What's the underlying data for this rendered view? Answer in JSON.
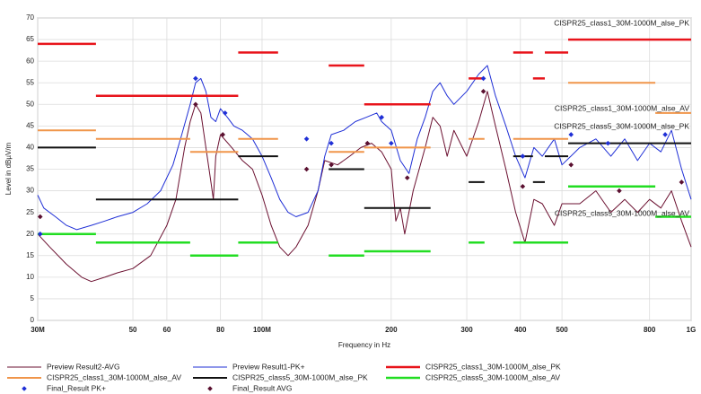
{
  "chart_data": {
    "type": "line",
    "xlabel": "Frequency in Hz",
    "ylabel": "Level in dBµV/m",
    "xscale": "log",
    "xlim": [
      30000000,
      1000000000
    ],
    "ylim": [
      0,
      70
    ],
    "xticks": [
      {
        "value": 30000000,
        "label": "30M"
      },
      {
        "value": 50000000,
        "label": "50"
      },
      {
        "value": 60000000,
        "label": "60"
      },
      {
        "value": 80000000,
        "label": "80"
      },
      {
        "value": 100000000,
        "label": "100M"
      },
      {
        "value": 200000000,
        "label": "200"
      },
      {
        "value": 300000000,
        "label": "300"
      },
      {
        "value": 400000000,
        "label": "400"
      },
      {
        "value": 500000000,
        "label": "500"
      },
      {
        "value": 800000000,
        "label": "800"
      },
      {
        "value": 1000000000,
        "label": "1G"
      }
    ],
    "yticks": [
      0,
      5,
      10,
      15,
      20,
      25,
      30,
      35,
      40,
      45,
      50,
      55,
      60,
      65,
      70
    ],
    "grid": true,
    "series": [
      {
        "name": "Preview Result2-AVG",
        "color": "#6b1030",
        "width": 1,
        "x": [
          30000000,
          32000000,
          35000000,
          38000000,
          40000000,
          43000000,
          46000000,
          50000000,
          55000000,
          60000000,
          63000000,
          66000000,
          68000000,
          70000000,
          72000000,
          74000000,
          76000000,
          77000000,
          78000000,
          80000000,
          85000000,
          90000000,
          95000000,
          100000000,
          105000000,
          110000000,
          115000000,
          120000000,
          128000000,
          135000000,
          140000000,
          150000000,
          160000000,
          170000000,
          180000000,
          190000000,
          200000000,
          205000000,
          210000000,
          215000000,
          225000000,
          240000000,
          250000000,
          260000000,
          270000000,
          280000000,
          300000000,
          320000000,
          335000000,
          350000000,
          370000000,
          390000000,
          410000000,
          430000000,
          450000000,
          480000000,
          500000000,
          550000000,
          600000000,
          650000000,
          700000000,
          750000000,
          800000000,
          850000000,
          900000000,
          950000000,
          1000000000
        ],
        "values": [
          20,
          17,
          13,
          10,
          9,
          10,
          11,
          12,
          15,
          22,
          28,
          40,
          46,
          50,
          48,
          40,
          32,
          28,
          38,
          43,
          40,
          37,
          35,
          29,
          22,
          17,
          15,
          17,
          22,
          30,
          37,
          36,
          38,
          40,
          41,
          39,
          35,
          23,
          26,
          20,
          30,
          40,
          47,
          45,
          38,
          44,
          38,
          46,
          53,
          45,
          35,
          25,
          18,
          28,
          27,
          22,
          27,
          27,
          30,
          25,
          28,
          25,
          28,
          26,
          30,
          23,
          17
        ]
      },
      {
        "name": "Preview Result1-PK+",
        "color": "#1f2fd6",
        "width": 1,
        "x": [
          30000000,
          31000000,
          33000000,
          35000000,
          37000000,
          40000000,
          43000000,
          46000000,
          50000000,
          54000000,
          58000000,
          62000000,
          65000000,
          68000000,
          70000000,
          72000000,
          74000000,
          76000000,
          78000000,
          80000000,
          83000000,
          86000000,
          90000000,
          95000000,
          100000000,
          105000000,
          110000000,
          115000000,
          120000000,
          128000000,
          135000000,
          140000000,
          145000000,
          155000000,
          165000000,
          175000000,
          185000000,
          190000000,
          200000000,
          210000000,
          220000000,
          230000000,
          240000000,
          250000000,
          260000000,
          270000000,
          280000000,
          300000000,
          320000000,
          335000000,
          350000000,
          370000000,
          390000000,
          410000000,
          430000000,
          450000000,
          480000000,
          500000000,
          550000000,
          600000000,
          650000000,
          700000000,
          750000000,
          800000000,
          850000000,
          900000000,
          950000000,
          1000000000
        ],
        "values": [
          29,
          26,
          24,
          22,
          21,
          22,
          23,
          24,
          25,
          27,
          30,
          36,
          43,
          50,
          55,
          56,
          53,
          47,
          46,
          49,
          47,
          45,
          44,
          42,
          38,
          33,
          28,
          25,
          24,
          25,
          30,
          38,
          43,
          44,
          46,
          47,
          48,
          46,
          44,
          37,
          34,
          42,
          47,
          53,
          55,
          52,
          50,
          53,
          57,
          59,
          52,
          45,
          38,
          33,
          40,
          38,
          42,
          36,
          40,
          42,
          38,
          42,
          37,
          41,
          39,
          44,
          35,
          28
        ]
      },
      {
        "name": "CISPR25_class1_30M-1000M_alse_PK",
        "color": "#e8141b",
        "width": 2.5,
        "x": [
          30000000,
          41000000,
          null,
          41000000,
          88000000,
          null,
          88000000,
          109000000,
          null,
          143000000,
          173000000,
          null,
          173000000,
          247000000,
          null,
          303000000,
          330000000,
          null,
          385000000,
          428000000,
          null,
          428000000,
          456000000,
          null,
          456000000,
          517000000,
          null,
          517000000,
          1000000000
        ],
        "values": [
          64,
          64,
          null,
          52,
          52,
          null,
          62,
          62,
          null,
          59,
          59,
          null,
          50,
          50,
          null,
          56,
          56,
          null,
          62,
          62,
          null,
          56,
          56,
          null,
          62,
          62,
          null,
          65,
          65
        ]
      },
      {
        "name": "CISPR25_class1_30M-1000M_alse_AV",
        "color": "#f0954a",
        "width": 2,
        "x": [
          30000000,
          41000000,
          null,
          41000000,
          68000000,
          null,
          68000000,
          88000000,
          null,
          88000000,
          109000000,
          null,
          143000000,
          173000000,
          null,
          173000000,
          247000000,
          null,
          303000000,
          330000000,
          null,
          385000000,
          517000000,
          null,
          517000000,
          825000000,
          null,
          825000000,
          1000000000
        ],
        "values": [
          44,
          44,
          null,
          42,
          42,
          null,
          39,
          39,
          null,
          42,
          42,
          null,
          39,
          39,
          null,
          40,
          40,
          null,
          42,
          42,
          null,
          42,
          42,
          null,
          55,
          55,
          null,
          48,
          48
        ]
      },
      {
        "name": "CISPR25_class5_30M-1000M_alse_PK",
        "color": "#111111",
        "width": 2,
        "x": [
          30000000,
          41000000,
          null,
          41000000,
          88000000,
          null,
          88000000,
          109000000,
          null,
          143000000,
          173000000,
          null,
          173000000,
          247000000,
          null,
          303000000,
          330000000,
          null,
          385000000,
          428000000,
          null,
          428000000,
          456000000,
          null,
          456000000,
          517000000,
          null,
          517000000,
          1000000000
        ],
        "values": [
          40,
          40,
          null,
          28,
          28,
          null,
          38,
          38,
          null,
          35,
          35,
          null,
          26,
          26,
          null,
          32,
          32,
          null,
          38,
          38,
          null,
          32,
          32,
          null,
          38,
          38,
          null,
          41,
          41
        ]
      },
      {
        "name": "CISPR25_class5_30M-1000M_alse_AV",
        "color": "#22dd22",
        "width": 2.5,
        "x": [
          30000000,
          41000000,
          null,
          41000000,
          68000000,
          null,
          68000000,
          88000000,
          null,
          88000000,
          109000000,
          null,
          143000000,
          173000000,
          null,
          173000000,
          247000000,
          null,
          303000000,
          330000000,
          null,
          385000000,
          517000000,
          null,
          517000000,
          825000000,
          null,
          825000000,
          1000000000
        ],
        "values": [
          20,
          20,
          null,
          18,
          18,
          null,
          15,
          15,
          null,
          18,
          18,
          null,
          15,
          15,
          null,
          16,
          16,
          null,
          18,
          18,
          null,
          18,
          18,
          null,
          31,
          31,
          null,
          24,
          24
        ]
      },
      {
        "name": "Final_Result PK+",
        "color": "#1f2fd6",
        "marker": "diamond",
        "x": [
          30400000,
          70000000,
          82000000,
          127000000,
          145000000,
          190000000,
          200000000,
          328000000,
          405000000,
          525000000,
          640000000,
          870000000
        ],
        "values": [
          20,
          56,
          48,
          42,
          41,
          47,
          41,
          56,
          38,
          43,
          41,
          43
        ]
      },
      {
        "name": "Final_Result AVG",
        "color": "#5a1030",
        "marker": "diamond",
        "x": [
          30400000,
          70000000,
          81000000,
          127000000,
          145000000,
          176000000,
          218000000,
          328000000,
          405000000,
          525000000,
          680000000,
          950000000
        ],
        "values": [
          24,
          50,
          43,
          35,
          36,
          41,
          33,
          53,
          31,
          36,
          30,
          32
        ]
      }
    ]
  }
}
